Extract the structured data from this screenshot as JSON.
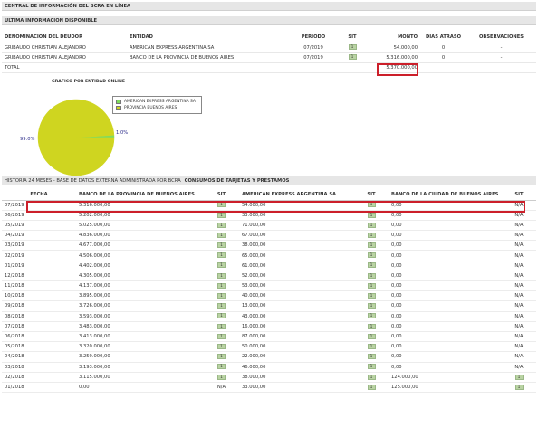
{
  "header": {
    "central": "CENTRAL DE INFORMACIÓN DEL BCRA EN LÍNEA",
    "ultima": "ULTIMA INFORMACION DISPONIBLE"
  },
  "summary": {
    "columns": [
      "DENOMINACION DEL DEUDOR",
      "ENTIDAD",
      "PERIODO",
      "SIT",
      "MONTO",
      "DIAS ATRASO",
      "OBSERVACIONES"
    ],
    "rows": [
      {
        "deudor": "GRIBAUDO CHRISTIAN ALEJANDRO",
        "entidad": "AMERICAN EXPRESS ARGENTINA SA",
        "periodo": "07/2019",
        "sit": "1",
        "monto": "54.000,00",
        "dias": "0",
        "obs": "-"
      },
      {
        "deudor": "GRIBAUDO CHRISTIAN ALEJANDRO",
        "entidad": "BANCO DE LA PROVINCIA DE BUENOS AIRES",
        "periodo": "07/2019",
        "sit": "1",
        "monto": "5.316.000,00",
        "dias": "0",
        "obs": "-"
      }
    ],
    "total_label": "TOTAL",
    "total_value": "5.370.000,00"
  },
  "chart_data": {
    "type": "pie",
    "title": "GRAFICO POR ENTIDAD ONLINE",
    "series": [
      {
        "name": "AMERICAN EXPRESS ARGENTINA SA",
        "value": 1.0,
        "color": "#7fdc5f"
      },
      {
        "name": "PROVINCIA BUENOS AIRES",
        "value": 99.0,
        "color": "#cfd520"
      }
    ],
    "labels": [
      "99.0%",
      "1.0%"
    ]
  },
  "history": {
    "title": "HISTORIA 24 MESES - BASE DE DATOS EXTERNA ADMINISTRADA POR BCRA",
    "subtitle": "CONSUMOS DE TARJETAS Y PRESTAMOS",
    "columns": [
      "FECHA",
      "BANCO DE LA PROVINCIA DE BUENOS AIRES",
      "SIT",
      "AMERICAN EXPRESS ARGENTINA SA",
      "SIT",
      "BANCO DE LA CIUDAD DE BUENOS AIRES",
      "SIT"
    ],
    "rows": [
      {
        "fecha": "07/2019",
        "bpba": "5.316.000,00",
        "s1": "1",
        "amex": "54.000,00",
        "s2": "1",
        "ciudad": "0,00",
        "s3": "N/A"
      },
      {
        "fecha": "06/2019",
        "bpba": "5.202.000,00",
        "s1": "1",
        "amex": "33.000,00",
        "s2": "1",
        "ciudad": "0,00",
        "s3": "N/A"
      },
      {
        "fecha": "05/2019",
        "bpba": "5.025.000,00",
        "s1": "1",
        "amex": "71.000,00",
        "s2": "1",
        "ciudad": "0,00",
        "s3": "N/A"
      },
      {
        "fecha": "04/2019",
        "bpba": "4.836.000,00",
        "s1": "1",
        "amex": "67.000,00",
        "s2": "1",
        "ciudad": "0,00",
        "s3": "N/A"
      },
      {
        "fecha": "03/2019",
        "bpba": "4.677.000,00",
        "s1": "1",
        "amex": "38.000,00",
        "s2": "1",
        "ciudad": "0,00",
        "s3": "N/A"
      },
      {
        "fecha": "02/2019",
        "bpba": "4.506.000,00",
        "s1": "1",
        "amex": "65.000,00",
        "s2": "1",
        "ciudad": "0,00",
        "s3": "N/A"
      },
      {
        "fecha": "01/2019",
        "bpba": "4.402.000,00",
        "s1": "1",
        "amex": "61.000,00",
        "s2": "1",
        "ciudad": "0,00",
        "s3": "N/A"
      },
      {
        "fecha": "12/2018",
        "bpba": "4.305.000,00",
        "s1": "1",
        "amex": "52.000,00",
        "s2": "1",
        "ciudad": "0,00",
        "s3": "N/A"
      },
      {
        "fecha": "11/2018",
        "bpba": "4.137.000,00",
        "s1": "1",
        "amex": "53.000,00",
        "s2": "1",
        "ciudad": "0,00",
        "s3": "N/A"
      },
      {
        "fecha": "10/2018",
        "bpba": "3.895.000,00",
        "s1": "1",
        "amex": "40.000,00",
        "s2": "1",
        "ciudad": "0,00",
        "s3": "N/A"
      },
      {
        "fecha": "09/2018",
        "bpba": "3.726.000,00",
        "s1": "1",
        "amex": "13.000,00",
        "s2": "1",
        "ciudad": "0,00",
        "s3": "N/A"
      },
      {
        "fecha": "08/2018",
        "bpba": "3.593.000,00",
        "s1": "1",
        "amex": "43.000,00",
        "s2": "1",
        "ciudad": "0,00",
        "s3": "N/A"
      },
      {
        "fecha": "07/2018",
        "bpba": "3.483.000,00",
        "s1": "1",
        "amex": "16.000,00",
        "s2": "1",
        "ciudad": "0,00",
        "s3": "N/A"
      },
      {
        "fecha": "06/2018",
        "bpba": "3.413.000,00",
        "s1": "1",
        "amex": "87.000,00",
        "s2": "1",
        "ciudad": "0,00",
        "s3": "N/A"
      },
      {
        "fecha": "05/2018",
        "bpba": "3.320.000,00",
        "s1": "1",
        "amex": "50.000,00",
        "s2": "1",
        "ciudad": "0,00",
        "s3": "N/A"
      },
      {
        "fecha": "04/2018",
        "bpba": "3.259.000,00",
        "s1": "1",
        "amex": "22.000,00",
        "s2": "1",
        "ciudad": "0,00",
        "s3": "N/A"
      },
      {
        "fecha": "03/2018",
        "bpba": "3.193.000,00",
        "s1": "1",
        "amex": "46.000,00",
        "s2": "1",
        "ciudad": "0,00",
        "s3": "N/A"
      },
      {
        "fecha": "02/2018",
        "bpba": "3.115.000,00",
        "s1": "1",
        "amex": "38.000,00",
        "s2": "1",
        "ciudad": "124.000,00",
        "s3": "1"
      },
      {
        "fecha": "01/2018",
        "bpba": "0,00",
        "s1": "N/A",
        "amex": "33.000,00",
        "s2": "1",
        "ciudad": "125.000,00",
        "s3": "1"
      }
    ]
  },
  "colors": {
    "highlight": "#cc1f2a",
    "sit_badge": "#b9d3a3",
    "header_bg": "#e6e6e6"
  }
}
